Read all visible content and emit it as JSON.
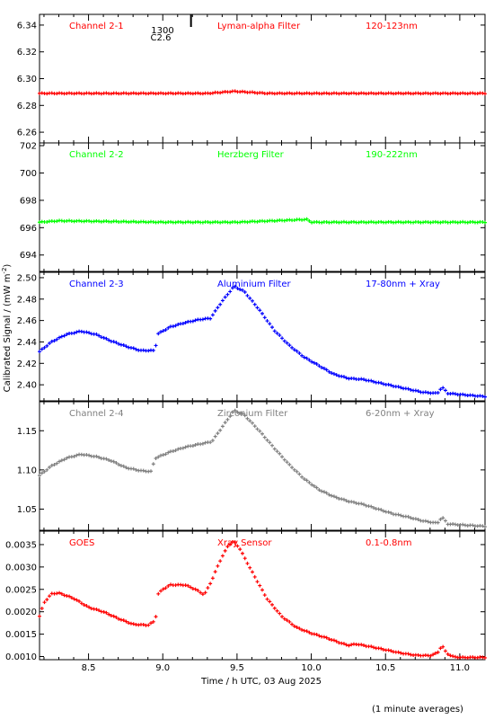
{
  "figure": {
    "ylabel": "Calibrated Signal / (mW m",
    "ylabel_sup": "-2",
    "ylabel_close": ")",
    "xlabel": "Time / h UTC, 03 Aug 2025",
    "footnote": "(1 minute averages)"
  },
  "flare_marker": {
    "time_label": "1300",
    "class_label": "C2.6",
    "x": 9.19
  },
  "chart_data": [
    {
      "type": "scatter",
      "labels": [
        "Channel 2-1",
        "Lyman-alpha Filter",
        "120-123nm"
      ],
      "color": "#ff0000",
      "xlim": [
        8.17,
        11.17
      ],
      "ylim": [
        6.252,
        6.348
      ],
      "xticks": [
        8.5,
        9.0,
        9.5,
        10.0,
        10.5,
        11.0
      ],
      "yticks": [
        6.26,
        6.28,
        6.3,
        6.32,
        6.34
      ],
      "ytick_labels": [
        "6.26",
        "6.28",
        "6.30",
        "6.32",
        "6.34"
      ],
      "x": [
        8.17,
        9.3,
        9.42,
        9.48,
        9.56,
        9.7,
        11.17
      ],
      "y": [
        6.289,
        6.289,
        6.29,
        6.2905,
        6.29,
        6.289,
        6.289
      ]
    },
    {
      "type": "scatter",
      "labels": [
        "Channel 2-2",
        "Herzberg Filter",
        "190-222nm"
      ],
      "color": "#00ff00",
      "xlim": [
        8.17,
        11.17
      ],
      "ylim": [
        692.8,
        702.2
      ],
      "xticks": [
        8.5,
        9.0,
        9.5,
        10.0,
        10.5,
        11.0
      ],
      "yticks": [
        694,
        696,
        698,
        700,
        702
      ],
      "ytick_labels": [
        "694",
        "696",
        "698",
        "700",
        "702"
      ],
      "x": [
        8.17,
        8.3,
        9.0,
        9.5,
        9.97,
        10.0,
        10.5,
        11.17
      ],
      "y": [
        696.4,
        696.5,
        696.4,
        696.4,
        696.6,
        696.4,
        696.4,
        696.4
      ]
    },
    {
      "type": "scatter",
      "labels": [
        "Channel 2-3",
        "Aluminium Filter",
        "17-80nm + Xray"
      ],
      "color": "#0000ff",
      "xlim": [
        8.17,
        11.17
      ],
      "ylim": [
        2.385,
        2.505
      ],
      "xticks": [
        8.5,
        9.0,
        9.5,
        10.0,
        10.5,
        11.0
      ],
      "yticks": [
        2.4,
        2.42,
        2.44,
        2.46,
        2.48,
        2.5
      ],
      "ytick_labels": [
        "2.40",
        "2.42",
        "2.44",
        "2.46",
        "2.48",
        "2.50"
      ],
      "x": [
        8.17,
        8.25,
        8.35,
        8.45,
        8.55,
        8.65,
        8.75,
        8.85,
        8.95,
        8.96,
        9.05,
        9.15,
        9.25,
        9.32,
        9.4,
        9.48,
        9.55,
        9.65,
        9.75,
        9.85,
        9.95,
        10.05,
        10.15,
        10.25,
        10.35,
        10.45,
        10.55,
        10.65,
        10.75,
        10.85,
        10.88,
        10.92,
        11.0,
        11.17
      ],
      "y": [
        2.431,
        2.44,
        2.447,
        2.45,
        2.447,
        2.441,
        2.436,
        2.432,
        2.432,
        2.447,
        2.454,
        2.458,
        2.461,
        2.462,
        2.478,
        2.492,
        2.487,
        2.47,
        2.451,
        2.437,
        2.426,
        2.418,
        2.41,
        2.406,
        2.405,
        2.402,
        2.399,
        2.396,
        2.393,
        2.392,
        2.398,
        2.392,
        2.391,
        2.389
      ]
    },
    {
      "type": "scatter",
      "labels": [
        "Channel 2-4",
        "Zirconium Filter",
        "6-20nm + Xray"
      ],
      "color": "#808080",
      "xlim": [
        8.17,
        11.17
      ],
      "ylim": [
        1.023,
        1.187
      ],
      "xticks": [
        8.5,
        9.0,
        9.5,
        10.0,
        10.5,
        11.0
      ],
      "yticks": [
        1.05,
        1.1,
        1.15
      ],
      "ytick_labels": [
        "1.05",
        "1.10",
        "1.15"
      ],
      "x": [
        8.17,
        8.25,
        8.35,
        8.45,
        8.55,
        8.65,
        8.75,
        8.85,
        8.92,
        8.95,
        9.05,
        9.15,
        9.25,
        9.33,
        9.42,
        9.48,
        9.55,
        9.65,
        9.75,
        9.85,
        9.95,
        10.05,
        10.15,
        10.25,
        10.35,
        10.45,
        10.55,
        10.65,
        10.75,
        10.85,
        10.88,
        10.92,
        11.0,
        11.17
      ],
      "y": [
        1.093,
        1.105,
        1.115,
        1.12,
        1.117,
        1.112,
        1.103,
        1.099,
        1.098,
        1.115,
        1.123,
        1.129,
        1.133,
        1.136,
        1.16,
        1.176,
        1.17,
        1.15,
        1.128,
        1.107,
        1.089,
        1.075,
        1.066,
        1.06,
        1.056,
        1.05,
        1.044,
        1.04,
        1.035,
        1.032,
        1.04,
        1.031,
        1.03,
        1.028
      ]
    },
    {
      "type": "scatter",
      "labels": [
        "GOES",
        "Xray Sensor",
        "0.1-0.8nm"
      ],
      "color": "#ff0000",
      "xlim": [
        8.17,
        11.17
      ],
      "ylim": [
        0.00093,
        0.0038
      ],
      "xticks": [
        8.5,
        9.0,
        9.5,
        10.0,
        10.5,
        11.0
      ],
      "yticks": [
        0.001,
        0.0015,
        0.002,
        0.0025,
        0.003,
        0.0035
      ],
      "ytick_labels": [
        "0.0010",
        "0.0015",
        "0.0020",
        "0.0025",
        "0.0030",
        "0.0035"
      ],
      "x": [
        8.17,
        8.2,
        8.25,
        8.3,
        8.4,
        8.5,
        8.6,
        8.7,
        8.8,
        8.9,
        8.95,
        8.97,
        9.0,
        9.05,
        9.15,
        9.22,
        9.28,
        9.33,
        9.38,
        9.44,
        9.48,
        9.52,
        9.6,
        9.7,
        9.8,
        9.9,
        10.0,
        10.1,
        10.2,
        10.25,
        10.3,
        10.4,
        10.5,
        10.6,
        10.7,
        10.8,
        10.85,
        10.88,
        10.91,
        10.95,
        11.0,
        11.17
      ],
      "y": [
        0.0019,
        0.0022,
        0.0024,
        0.00242,
        0.0023,
        0.0021,
        0.002,
        0.00185,
        0.00172,
        0.0017,
        0.0018,
        0.0024,
        0.0025,
        0.0026,
        0.0026,
        0.0025,
        0.00238,
        0.0027,
        0.0031,
        0.00348,
        0.00358,
        0.0034,
        0.0029,
        0.0023,
        0.0019,
        0.00165,
        0.00152,
        0.00142,
        0.0013,
        0.00125,
        0.00128,
        0.00122,
        0.00115,
        0.00108,
        0.00103,
        0.00102,
        0.00108,
        0.00125,
        0.00108,
        0.001,
        0.00098,
        0.00098
      ]
    }
  ]
}
